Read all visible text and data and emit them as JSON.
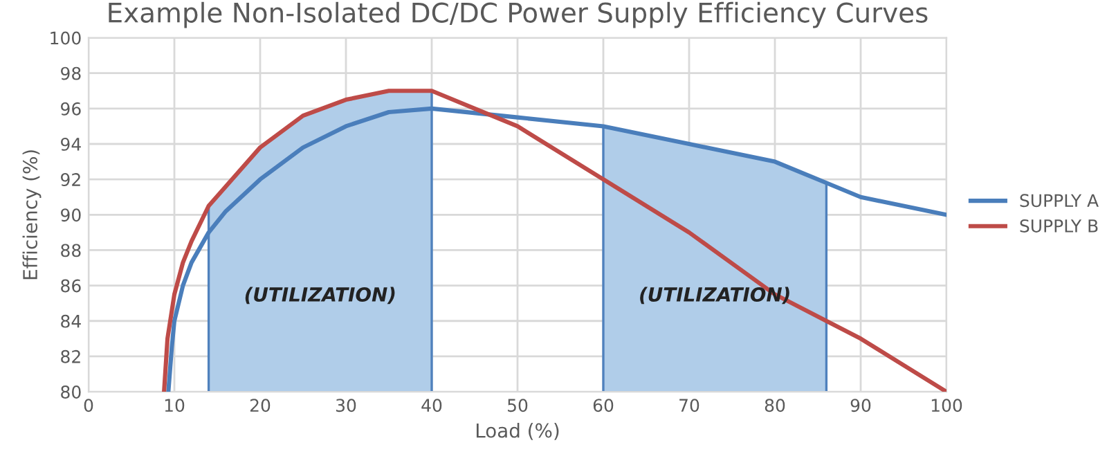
{
  "chart_data": {
    "type": "line",
    "title": "Example Non-Isolated DC/DC Power Supply Efficiency Curves",
    "xlabel": "Load (%)",
    "ylabel": "Efficiency (%)",
    "xlim": [
      0,
      100
    ],
    "xticks": [
      0,
      10,
      20,
      30,
      40,
      50,
      60,
      70,
      80,
      90,
      100
    ],
    "ylim": [
      80,
      100
    ],
    "yticks": [
      80,
      82,
      84,
      86,
      88,
      90,
      92,
      94,
      96,
      98,
      100
    ],
    "grid": true,
    "legend": "right",
    "marker": "none",
    "line_style": "solid",
    "series": [
      {
        "type": "area",
        "color": "#b0cde9",
        "x": [
          14,
          20,
          25,
          30,
          35,
          40
        ],
        "values": [
          90.5,
          93.8,
          95.6,
          96.5,
          97,
          97
        ]
      },
      {
        "type": "area",
        "color": "#b0cde9",
        "x": [
          60,
          70,
          80,
          86
        ],
        "values": [
          95,
          94,
          93,
          91.8
        ]
      },
      {
        "name": "SUPPLY A",
        "color": "#4a7ebb",
        "x": [
          9.3,
          9.7,
          10,
          11,
          12,
          14,
          16,
          20,
          25,
          30,
          35,
          40,
          50,
          60,
          70,
          80,
          86,
          90,
          100
        ],
        "values": [
          80,
          82.5,
          84,
          86,
          87.3,
          89,
          90.2,
          92,
          93.8,
          95,
          95.8,
          96,
          95.5,
          95,
          94,
          93,
          91.8,
          91,
          90
        ]
      },
      {
        "name": "SUPPLY B",
        "color": "#be4b48",
        "x": [
          8.8,
          9.2,
          10,
          11,
          12,
          14,
          20,
          25,
          30,
          35,
          40,
          45,
          50,
          60,
          70,
          80,
          86,
          90,
          100
        ],
        "values": [
          80,
          83,
          85.5,
          87.3,
          88.5,
          90.5,
          93.8,
          95.6,
          96.5,
          97,
          97,
          96,
          95,
          92,
          89,
          85.5,
          84,
          83,
          80
        ]
      }
    ],
    "annotations": [
      "(UTILIZATION)",
      "(UTILIZATION)"
    ]
  }
}
